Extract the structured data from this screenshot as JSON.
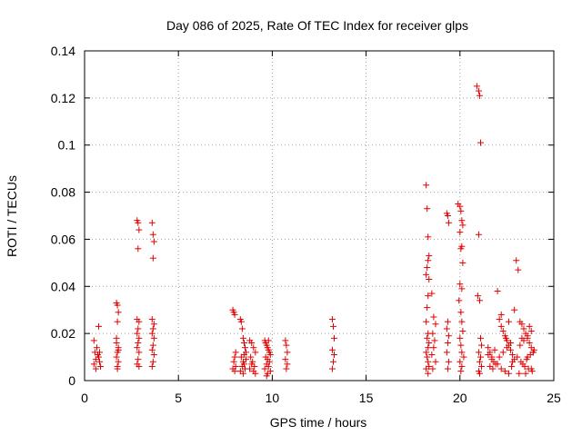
{
  "chart_data": {
    "type": "scatter",
    "title": "Day 086 of 2025, Rate Of TEC Index for receiver glps",
    "xlabel": "GPS time / hours",
    "ylabel": "ROTI / TECUs",
    "xlim": [
      0,
      25
    ],
    "ylim": [
      0,
      0.14
    ],
    "x_ticks": [
      0,
      5,
      10,
      15,
      20,
      25
    ],
    "x_tick_labels": [
      "0",
      "5",
      "10",
      "15",
      "20",
      "25"
    ],
    "y_ticks": [
      0,
      0.02,
      0.04,
      0.06,
      0.08,
      0.1,
      0.12,
      0.14
    ],
    "y_tick_labels": [
      "0",
      "0.02",
      "0.04",
      "0.06",
      "0.08",
      "0.1",
      "0.12",
      "0.14"
    ],
    "grid": true,
    "marker": "plus",
    "color": "#e00000",
    "series": [
      {
        "name": "ROTI",
        "x": [
          0.5,
          0.5,
          0.55,
          0.6,
          0.6,
          0.65,
          0.7,
          0.75,
          0.8,
          0.85,
          0.8,
          0.75,
          1.7,
          1.75,
          1.8,
          1.75,
          1.7,
          1.8,
          1.75,
          1.7,
          1.8,
          1.75,
          1.7,
          1.8,
          1.75,
          2.8,
          2.85,
          2.9,
          2.85,
          2.8,
          2.9,
          2.85,
          2.8,
          2.9,
          2.85,
          2.8,
          2.9,
          2.85,
          2.8,
          2.9,
          3.6,
          3.65,
          3.7,
          3.65,
          3.6,
          3.7,
          3.65,
          3.6,
          3.7,
          3.65,
          3.6,
          3.7,
          3.65,
          3.6,
          7.9,
          7.95,
          8.0,
          8.05,
          8.0,
          7.95,
          7.9,
          8.05,
          8.0,
          8.3,
          8.35,
          8.4,
          8.45,
          8.5,
          8.55,
          8.6,
          8.35,
          8.45,
          8.5,
          8.4,
          8.55,
          8.3,
          8.45,
          8.6,
          8.5,
          8.8,
          8.9,
          9.0,
          9.1,
          8.85,
          8.95,
          9.05,
          8.8,
          9.0,
          9.1,
          8.9,
          9.6,
          9.65,
          9.7,
          9.75,
          9.8,
          9.85,
          9.9,
          9.65,
          9.75,
          9.85,
          9.7,
          9.8,
          9.6,
          9.9,
          9.75,
          9.7,
          9.8,
          10.7,
          10.75,
          10.8,
          10.7,
          10.8,
          10.75,
          13.2,
          13.25,
          13.3,
          13.2,
          13.3,
          13.25,
          13.2,
          18.2,
          18.25,
          18.3,
          18.35,
          18.3,
          18.25,
          18.2,
          18.35,
          18.3,
          18.25,
          18.2,
          18.3,
          18.25,
          18.35,
          18.3,
          18.2,
          18.25,
          18.3,
          18.35,
          18.2,
          18.3,
          18.5,
          18.6,
          18.7,
          18.55,
          18.65,
          18.6,
          18.5,
          18.7,
          18.55,
          19.3,
          19.35,
          19.4,
          19.35,
          19.3,
          19.4,
          19.35,
          19.3,
          19.4,
          19.35,
          19.9,
          20.0,
          20.05,
          20.1,
          20.15,
          20.0,
          20.1,
          20.05,
          20.15,
          20.0,
          20.1,
          19.95,
          20.05,
          20.1,
          20.15,
          20.0,
          20.05,
          20.1,
          20.2,
          20.0,
          20.1,
          20.05,
          20.9,
          21.0,
          21.05,
          21.1,
          21.0,
          20.95,
          21.05,
          21.1,
          21.15,
          21.0,
          21.1,
          21.05,
          21.15,
          21.0,
          21.05,
          21.5,
          21.6,
          21.7,
          21.8,
          21.9,
          21.6,
          21.75,
          21.85,
          21.5,
          21.7,
          22.0,
          22.1,
          22.2,
          22.3,
          22.4,
          22.5,
          22.6,
          22.7,
          22.8,
          22.9,
          22.0,
          22.2,
          22.4,
          22.6,
          22.8,
          22.1,
          22.3,
          22.5,
          22.7,
          22.9,
          22.2,
          22.6,
          22.45,
          22.75,
          23.0,
          23.1,
          23.2,
          23.3,
          23.4,
          23.5,
          23.6,
          23.7,
          23.8,
          23.9,
          23.05,
          23.25,
          23.45,
          23.65,
          23.85,
          23.15,
          23.35,
          23.55,
          23.75,
          23.95,
          23.2,
          23.4,
          23.6,
          23.8,
          23.7,
          23.8,
          23.5,
          23.9,
          23.3,
          23.6
        ],
        "y": [
          0.017,
          0.007,
          0.012,
          0.005,
          0.009,
          0.014,
          0.011,
          0.023,
          0.008,
          0.006,
          0.012,
          0.01,
          0.033,
          0.032,
          0.029,
          0.025,
          0.018,
          0.014,
          0.012,
          0.01,
          0.008,
          0.006,
          0.016,
          0.013,
          0.005,
          0.068,
          0.067,
          0.064,
          0.056,
          0.026,
          0.025,
          0.022,
          0.02,
          0.018,
          0.016,
          0.014,
          0.012,
          0.009,
          0.007,
          0.006,
          0.067,
          0.062,
          0.059,
          0.052,
          0.026,
          0.024,
          0.022,
          0.02,
          0.018,
          0.015,
          0.013,
          0.011,
          0.008,
          0.006,
          0.03,
          0.029,
          0.028,
          0.012,
          0.01,
          0.008,
          0.005,
          0.006,
          0.004,
          0.026,
          0.025,
          0.022,
          0.018,
          0.016,
          0.014,
          0.012,
          0.01,
          0.008,
          0.007,
          0.006,
          0.005,
          0.004,
          0.003,
          0.009,
          0.011,
          0.017,
          0.016,
          0.014,
          0.012,
          0.01,
          0.008,
          0.006,
          0.005,
          0.004,
          0.003,
          0.007,
          0.017,
          0.016,
          0.015,
          0.014,
          0.013,
          0.012,
          0.011,
          0.01,
          0.009,
          0.008,
          0.007,
          0.006,
          0.005,
          0.004,
          0.003,
          0.002,
          0.017,
          0.017,
          0.015,
          0.012,
          0.009,
          0.007,
          0.005,
          0.026,
          0.023,
          0.018,
          0.013,
          0.011,
          0.008,
          0.005,
          0.083,
          0.073,
          0.061,
          0.053,
          0.051,
          0.048,
          0.045,
          0.043,
          0.036,
          0.031,
          0.025,
          0.02,
          0.018,
          0.016,
          0.014,
          0.012,
          0.01,
          0.008,
          0.006,
          0.005,
          0.003,
          0.037,
          0.027,
          0.024,
          0.02,
          0.017,
          0.014,
          0.011,
          0.008,
          0.005,
          0.071,
          0.07,
          0.067,
          0.025,
          0.022,
          0.019,
          0.016,
          0.012,
          0.008,
          0.005,
          0.075,
          0.074,
          0.072,
          0.068,
          0.066,
          0.063,
          0.057,
          0.056,
          0.05,
          0.041,
          0.039,
          0.034,
          0.029,
          0.025,
          0.021,
          0.018,
          0.015,
          0.012,
          0.01,
          0.008,
          0.006,
          0.004,
          0.125,
          0.123,
          0.121,
          0.101,
          0.062,
          0.036,
          0.034,
          0.018,
          0.015,
          0.012,
          0.01,
          0.008,
          0.006,
          0.004,
          0.003,
          0.014,
          0.012,
          0.01,
          0.008,
          0.007,
          0.006,
          0.005,
          0.013,
          0.011,
          0.009,
          0.038,
          0.026,
          0.023,
          0.021,
          0.019,
          0.017,
          0.015,
          0.013,
          0.011,
          0.009,
          0.007,
          0.005,
          0.004,
          0.003,
          0.008,
          0.01,
          0.012,
          0.014,
          0.016,
          0.03,
          0.028,
          0.025,
          0.018,
          0.006,
          0.051,
          0.047,
          0.025,
          0.024,
          0.022,
          0.02,
          0.018,
          0.016,
          0.014,
          0.012,
          0.01,
          0.008,
          0.006,
          0.005,
          0.004,
          0.003,
          0.007,
          0.009,
          0.011,
          0.013,
          0.015,
          0.017,
          0.019,
          0.021,
          0.023,
          0.005,
          0.003,
          0.012,
          0.018,
          0.01
        ]
      }
    ]
  }
}
